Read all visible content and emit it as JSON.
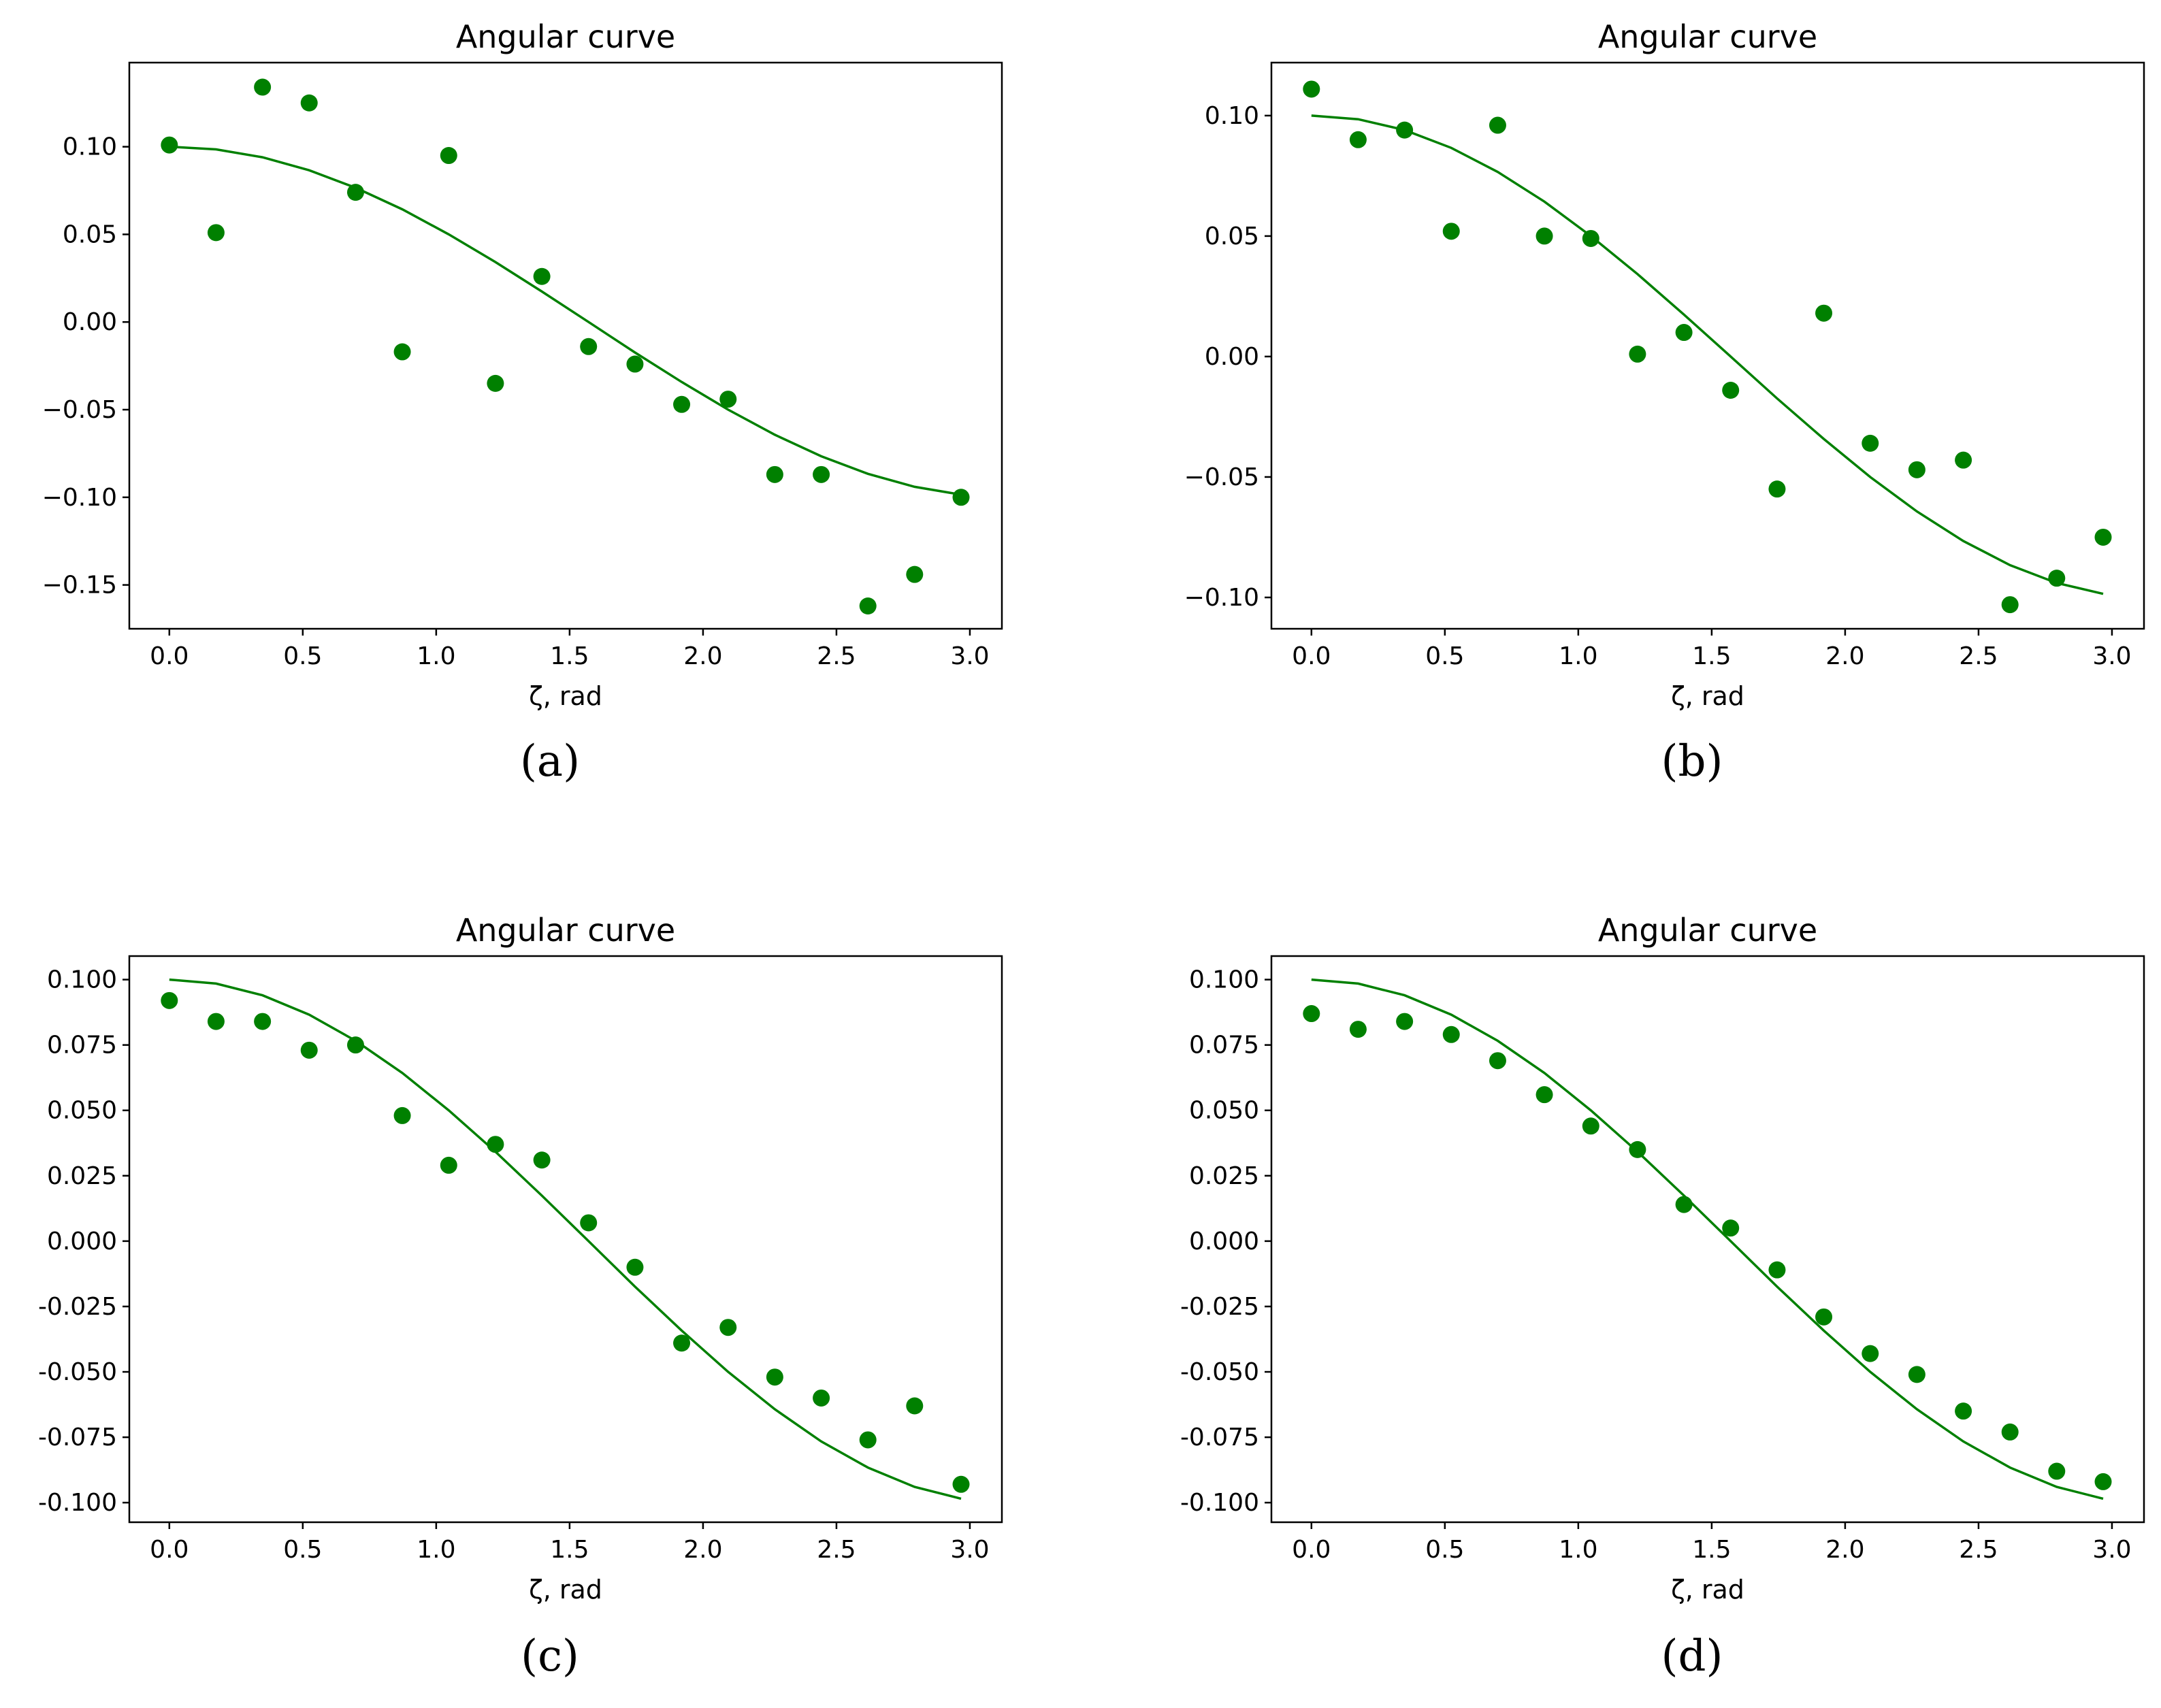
{
  "figure": {
    "panel_labels": [
      "(a)",
      "(b)",
      "(c)",
      "(d)"
    ],
    "marker_color": "#008000",
    "line_color": "#008000"
  },
  "chart_data": [
    {
      "type": "scatter",
      "panel": "(a)",
      "title": "Angular curve",
      "xlabel": "ζ, rad",
      "ylabel": "",
      "xlim": [
        -0.15,
        3.12
      ],
      "ylim": [
        -0.175,
        0.148
      ],
      "xticks": [
        0.0,
        0.5,
        1.0,
        1.5,
        2.0,
        2.5,
        3.0
      ],
      "xtick_labels": [
        "0.0",
        "0.5",
        "1.0",
        "1.5",
        "2.0",
        "2.5",
        "3.0"
      ],
      "yticks": [
        0.1,
        0.05,
        0.0,
        -0.05,
        -0.1,
        -0.15
      ],
      "ytick_labels": [
        "0.10",
        "0.05",
        "0.00",
        "−0.05",
        "−0.10",
        "−0.15"
      ],
      "series": [
        {
          "name": "points",
          "kind": "scatter",
          "x": [
            0.0,
            0.175,
            0.349,
            0.524,
            0.698,
            0.873,
            1.047,
            1.222,
            1.396,
            1.571,
            1.745,
            1.92,
            2.094,
            2.269,
            2.443,
            2.618,
            2.793,
            2.967
          ],
          "y": [
            0.101,
            0.051,
            0.134,
            0.125,
            0.074,
            -0.017,
            0.095,
            -0.035,
            0.026,
            -0.014,
            -0.024,
            -0.047,
            -0.044,
            -0.087,
            -0.087,
            -0.162,
            -0.144,
            -0.1
          ]
        },
        {
          "name": "curve",
          "kind": "line",
          "x": [
            0.0,
            0.175,
            0.349,
            0.524,
            0.698,
            0.873,
            1.047,
            1.222,
            1.396,
            1.571,
            1.745,
            1.92,
            2.094,
            2.269,
            2.443,
            2.618,
            2.793,
            2.967
          ],
          "y": [
            0.1,
            0.0985,
            0.094,
            0.0866,
            0.0766,
            0.0643,
            0.05,
            0.0342,
            0.0174,
            0.0,
            -0.0174,
            -0.0342,
            -0.05,
            -0.0643,
            -0.0766,
            -0.0866,
            -0.094,
            -0.0985
          ]
        }
      ]
    },
    {
      "type": "scatter",
      "panel": "(b)",
      "title": "Angular curve",
      "xlabel": "ζ, rad",
      "ylabel": "",
      "xlim": [
        -0.15,
        3.12
      ],
      "ylim": [
        -0.113,
        0.122
      ],
      "xticks": [
        0.0,
        0.5,
        1.0,
        1.5,
        2.0,
        2.5,
        3.0
      ],
      "xtick_labels": [
        "0.0",
        "0.5",
        "1.0",
        "1.5",
        "2.0",
        "2.5",
        "3.0"
      ],
      "yticks": [
        0.1,
        0.05,
        0.0,
        -0.05,
        -0.1
      ],
      "ytick_labels": [
        "0.10",
        "0.05",
        "0.00",
        "−0.05",
        "−0.10"
      ],
      "series": [
        {
          "name": "points",
          "kind": "scatter",
          "x": [
            0.0,
            0.175,
            0.349,
            0.524,
            0.698,
            0.873,
            1.047,
            1.222,
            1.396,
            1.571,
            1.745,
            1.92,
            2.094,
            2.269,
            2.443,
            2.618,
            2.793,
            2.967
          ],
          "y": [
            0.111,
            0.09,
            0.094,
            0.052,
            0.096,
            0.05,
            0.049,
            0.001,
            0.01,
            -0.014,
            -0.055,
            0.018,
            -0.036,
            -0.047,
            -0.043,
            -0.103,
            -0.092,
            -0.075
          ]
        },
        {
          "name": "curve",
          "kind": "line",
          "x": [
            0.0,
            0.175,
            0.349,
            0.524,
            0.698,
            0.873,
            1.047,
            1.222,
            1.396,
            1.571,
            1.745,
            1.92,
            2.094,
            2.269,
            2.443,
            2.618,
            2.793,
            2.967
          ],
          "y": [
            0.1,
            0.0985,
            0.094,
            0.0866,
            0.0766,
            0.0643,
            0.05,
            0.0342,
            0.0174,
            0.0,
            -0.0174,
            -0.0342,
            -0.05,
            -0.0643,
            -0.0766,
            -0.0866,
            -0.094,
            -0.0985
          ]
        }
      ]
    },
    {
      "type": "scatter",
      "panel": "(c)",
      "title": "Angular curve",
      "xlabel": "ζ, rad",
      "ylabel": "",
      "xlim": [
        -0.15,
        3.12
      ],
      "ylim": [
        -0.1075,
        0.109
      ],
      "xticks": [
        0.0,
        0.5,
        1.0,
        1.5,
        2.0,
        2.5,
        3.0
      ],
      "xtick_labels": [
        "0.0",
        "0.5",
        "1.0",
        "1.5",
        "2.0",
        "2.5",
        "3.0"
      ],
      "yticks": [
        0.1,
        0.075,
        0.05,
        0.025,
        0.0,
        -0.025,
        -0.05,
        -0.075,
        -0.1
      ],
      "ytick_labels": [
        "0.100",
        "0.075",
        "0.050",
        "0.025",
        "0.000",
        "-0.025",
        "-0.050",
        "-0.075",
        "-0.100"
      ],
      "series": [
        {
          "name": "points",
          "kind": "scatter",
          "x": [
            0.0,
            0.175,
            0.349,
            0.524,
            0.698,
            0.873,
            1.047,
            1.222,
            1.396,
            1.571,
            1.745,
            1.92,
            2.094,
            2.269,
            2.443,
            2.618,
            2.793,
            2.967
          ],
          "y": [
            0.092,
            0.084,
            0.084,
            0.073,
            0.075,
            0.048,
            0.029,
            0.037,
            0.031,
            0.007,
            -0.01,
            -0.039,
            -0.033,
            -0.052,
            -0.06,
            -0.076,
            -0.063,
            -0.093
          ]
        },
        {
          "name": "curve",
          "kind": "line",
          "x": [
            0.0,
            0.175,
            0.349,
            0.524,
            0.698,
            0.873,
            1.047,
            1.222,
            1.396,
            1.571,
            1.745,
            1.92,
            2.094,
            2.269,
            2.443,
            2.618,
            2.793,
            2.967
          ],
          "y": [
            0.1,
            0.0985,
            0.094,
            0.0866,
            0.0766,
            0.0643,
            0.05,
            0.0342,
            0.0174,
            0.0,
            -0.0174,
            -0.0342,
            -0.05,
            -0.0643,
            -0.0766,
            -0.0866,
            -0.094,
            -0.0985
          ]
        }
      ]
    },
    {
      "type": "scatter",
      "panel": "(d)",
      "title": "Angular curve",
      "xlabel": "ζ, rad",
      "ylabel": "",
      "xlim": [
        -0.15,
        3.12
      ],
      "ylim": [
        -0.1075,
        0.109
      ],
      "xticks": [
        0.0,
        0.5,
        1.0,
        1.5,
        2.0,
        2.5,
        3.0
      ],
      "xtick_labels": [
        "0.0",
        "0.5",
        "1.0",
        "1.5",
        "2.0",
        "2.5",
        "3.0"
      ],
      "yticks": [
        0.1,
        0.075,
        0.05,
        0.025,
        0.0,
        -0.025,
        -0.05,
        -0.075,
        -0.1
      ],
      "ytick_labels": [
        "0.100",
        "0.075",
        "0.050",
        "0.025",
        "0.000",
        "-0.025",
        "-0.050",
        "-0.075",
        "-0.100"
      ],
      "series": [
        {
          "name": "points",
          "kind": "scatter",
          "x": [
            0.0,
            0.175,
            0.349,
            0.524,
            0.698,
            0.873,
            1.047,
            1.222,
            1.396,
            1.571,
            1.745,
            1.92,
            2.094,
            2.269,
            2.443,
            2.618,
            2.793,
            2.967
          ],
          "y": [
            0.087,
            0.081,
            0.084,
            0.079,
            0.069,
            0.056,
            0.044,
            0.035,
            0.014,
            0.005,
            -0.011,
            -0.029,
            -0.043,
            -0.051,
            -0.065,
            -0.073,
            -0.088,
            -0.092
          ]
        },
        {
          "name": "curve",
          "kind": "line",
          "x": [
            0.0,
            0.175,
            0.349,
            0.524,
            0.698,
            0.873,
            1.047,
            1.222,
            1.396,
            1.571,
            1.745,
            1.92,
            2.094,
            2.269,
            2.443,
            2.618,
            2.793,
            2.967
          ],
          "y": [
            0.1,
            0.0985,
            0.094,
            0.0866,
            0.0766,
            0.0643,
            0.05,
            0.0342,
            0.0174,
            0.0,
            -0.0174,
            -0.0342,
            -0.05,
            -0.0643,
            -0.0766,
            -0.0866,
            -0.094,
            -0.0985
          ]
        }
      ]
    }
  ]
}
